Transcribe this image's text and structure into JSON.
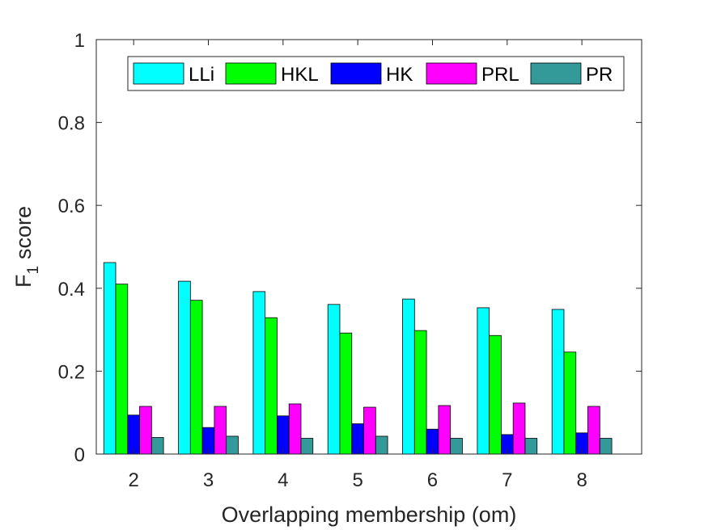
{
  "chart_data": {
    "type": "bar",
    "title": "",
    "xlabel": "Overlapping membership (om)",
    "ylabel": "F",
    "ylabel_subscript": "1",
    "ylabel_suffix": "score",
    "categories": [
      "2",
      "3",
      "4",
      "5",
      "6",
      "7",
      "8"
    ],
    "x_range": [
      1.5,
      8.8
    ],
    "ylim": [
      0,
      1
    ],
    "yticks": [
      0,
      0.2,
      0.4,
      0.6,
      0.8,
      1
    ],
    "ytick_labels": [
      "0",
      "0.2",
      "0.4",
      "0.6",
      "0.8",
      "1"
    ],
    "legend_position": "top-right",
    "grid": false,
    "series": [
      {
        "name": "LLi",
        "color": "#00FFFF",
        "values": [
          0.462,
          0.417,
          0.392,
          0.361,
          0.374,
          0.353,
          0.349
        ]
      },
      {
        "name": "HKL",
        "color": "#00FF00",
        "values": [
          0.41,
          0.371,
          0.329,
          0.292,
          0.298,
          0.286,
          0.246
        ]
      },
      {
        "name": "HK",
        "color": "#0000FF",
        "values": [
          0.094,
          0.064,
          0.092,
          0.073,
          0.06,
          0.047,
          0.051
        ]
      },
      {
        "name": "PRL",
        "color": "#FF00FF",
        "values": [
          0.115,
          0.115,
          0.121,
          0.113,
          0.117,
          0.123,
          0.115
        ]
      },
      {
        "name": "PR",
        "color": "#339999",
        "values": [
          0.04,
          0.043,
          0.038,
          0.043,
          0.038,
          0.038,
          0.038
        ]
      }
    ]
  }
}
